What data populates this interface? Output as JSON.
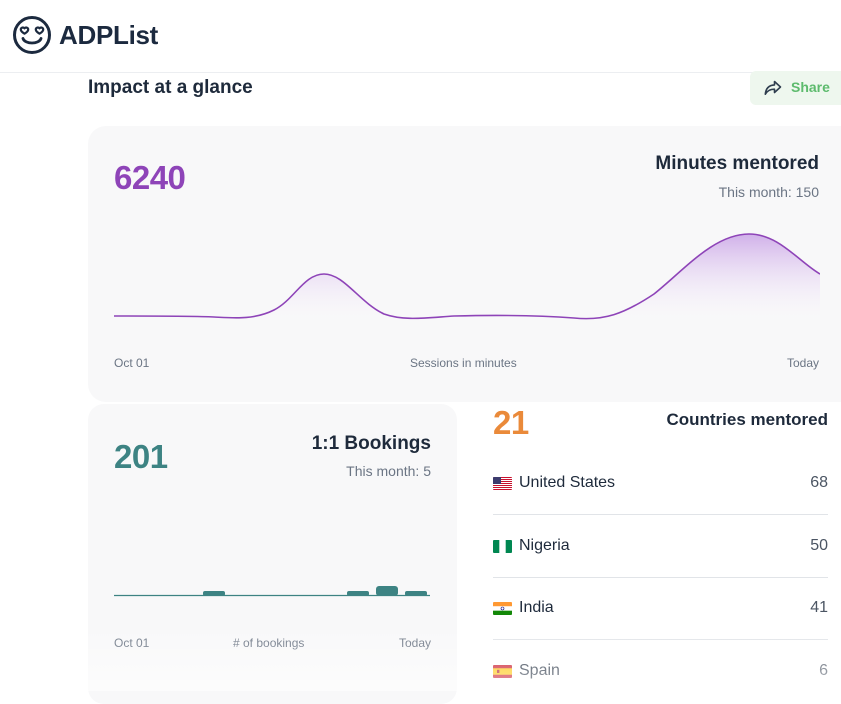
{
  "app": {
    "name": "ADPList"
  },
  "section": {
    "title": "Impact at a glance",
    "share_label": "Share"
  },
  "minutes": {
    "total": "6240",
    "title": "Minutes mentored",
    "this_month": "This month: 150",
    "x_start": "Oct 01",
    "x_label": "Sessions in minutes",
    "x_end": "Today",
    "color": "#8e44b8"
  },
  "bookings": {
    "total": "201",
    "title": "1:1 Bookings",
    "this_month": "This month: 5",
    "x_start": "Oct 01",
    "x_label": "# of bookings",
    "x_end": "Today",
    "color": "#3d8383"
  },
  "countries": {
    "count": "21",
    "title": "Countries mentored",
    "color": "#ea8a3a",
    "items": [
      {
        "flag": "us-flag-icon",
        "name": "United States",
        "value": "68"
      },
      {
        "flag": "nigeria-flag-icon",
        "name": "Nigeria",
        "value": "50"
      },
      {
        "flag": "india-flag-icon",
        "name": "India",
        "value": "41"
      },
      {
        "flag": "spain-flag-icon",
        "name": "Spain",
        "value": "6"
      }
    ]
  }
}
